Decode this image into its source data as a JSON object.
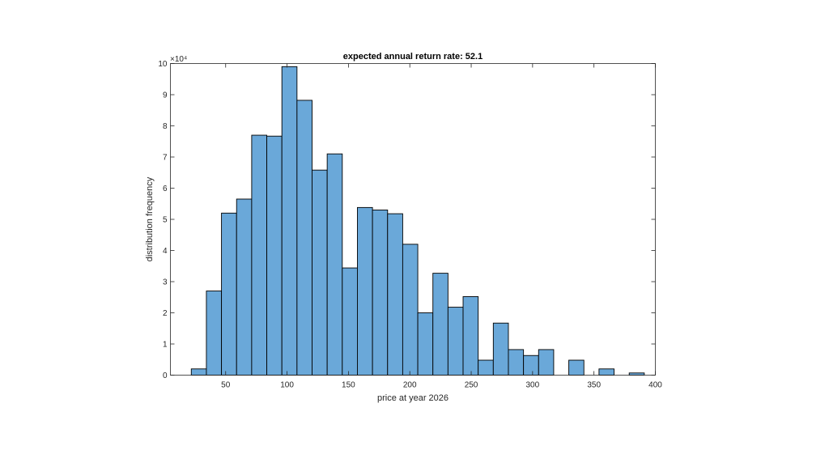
{
  "chart_data": {
    "type": "bar",
    "title": "expected annual return rate: 52.1",
    "xlabel": "price at year 2026",
    "ylabel": "distribution frequency",
    "y_exponent_label": "×10⁴",
    "xlim": [
      5,
      400
    ],
    "ylim": [
      0,
      10
    ],
    "xticks": [
      50,
      100,
      150,
      200,
      250,
      300,
      350,
      400
    ],
    "yticks": [
      0,
      1,
      2,
      3,
      4,
      5,
      6,
      7,
      8,
      9,
      10
    ],
    "grid": false,
    "bin_width": 12.3,
    "bins": [
      {
        "x0": 22.0,
        "value": 0.2
      },
      {
        "x0": 34.3,
        "value": 2.7
      },
      {
        "x0": 46.6,
        "value": 5.2
      },
      {
        "x0": 58.9,
        "value": 5.65
      },
      {
        "x0": 71.2,
        "value": 7.7
      },
      {
        "x0": 83.5,
        "value": 7.67
      },
      {
        "x0": 95.8,
        "value": 9.9
      },
      {
        "x0": 108.1,
        "value": 8.82
      },
      {
        "x0": 120.4,
        "value": 6.58
      },
      {
        "x0": 132.7,
        "value": 7.1
      },
      {
        "x0": 145.0,
        "value": 3.44
      },
      {
        "x0": 157.3,
        "value": 5.38
      },
      {
        "x0": 169.6,
        "value": 5.3
      },
      {
        "x0": 181.9,
        "value": 5.18
      },
      {
        "x0": 194.2,
        "value": 4.2
      },
      {
        "x0": 206.5,
        "value": 2.0
      },
      {
        "x0": 218.8,
        "value": 3.27
      },
      {
        "x0": 231.1,
        "value": 2.18
      },
      {
        "x0": 243.4,
        "value": 2.52
      },
      {
        "x0": 255.7,
        "value": 0.48
      },
      {
        "x0": 268.0,
        "value": 1.67
      },
      {
        "x0": 280.3,
        "value": 0.82
      },
      {
        "x0": 292.6,
        "value": 0.63
      },
      {
        "x0": 304.9,
        "value": 0.82
      },
      {
        "x0": 317.2,
        "value": 0.0
      },
      {
        "x0": 329.5,
        "value": 0.48
      },
      {
        "x0": 341.8,
        "value": 0.0
      },
      {
        "x0": 354.1,
        "value": 0.2
      },
      {
        "x0": 366.4,
        "value": 0.0
      },
      {
        "x0": 378.7,
        "value": 0.07
      }
    ]
  }
}
